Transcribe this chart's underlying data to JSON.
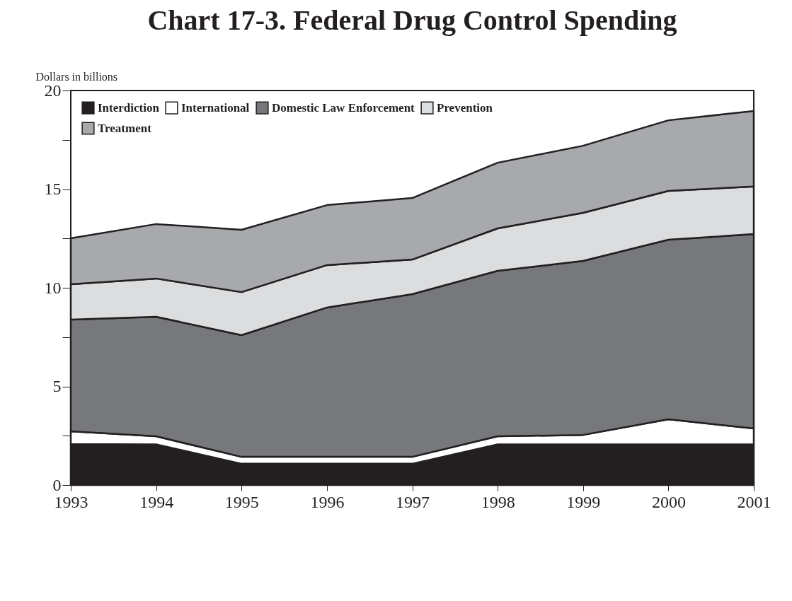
{
  "chart_data": {
    "type": "area",
    "title": "Chart 17-3.  Federal Drug Control Spending",
    "ylabel": "Dollars in billions",
    "stacked": true,
    "x": [
      1993,
      1994,
      1995,
      1996,
      1997,
      1998,
      1999,
      2000,
      2001
    ],
    "series": [
      {
        "name": "Interdiction",
        "color": "#231f20",
        "values": [
          2.08,
          2.06,
          1.08,
          1.08,
          1.08,
          2.06,
          2.06,
          2.06,
          2.06
        ]
      },
      {
        "name": "International",
        "color": "#ffffff",
        "values": [
          0.64,
          0.41,
          0.35,
          0.35,
          0.35,
          0.41,
          0.48,
          1.27,
          0.81
        ]
      },
      {
        "name": "Domestic Law Enforcement",
        "color": "#77787b",
        "values": [
          5.67,
          6.06,
          6.17,
          7.57,
          8.25,
          8.39,
          8.82,
          9.11,
          9.85
        ]
      },
      {
        "name": "Prevention",
        "color": "#dcdddf",
        "values": [
          1.79,
          1.94,
          2.18,
          2.15,
          1.75,
          2.15,
          2.44,
          2.47,
          2.41
        ]
      },
      {
        "name": "Treatment",
        "color": "#a7a9ac",
        "values": [
          2.33,
          2.76,
          3.16,
          3.04,
          3.12,
          3.33,
          3.4,
          3.58,
          3.83
        ]
      }
    ],
    "xlim": [
      1993,
      2001
    ],
    "xticks": [
      1993,
      1994,
      1995,
      1996,
      1997,
      1998,
      1999,
      2000,
      2001
    ],
    "ylim": [
      0,
      20
    ],
    "yticks": [
      0,
      {
        "value": 2.5,
        "label": null
      },
      5,
      {
        "value": 7.5,
        "label": null
      },
      10,
      {
        "value": 12.5,
        "label": null
      },
      15,
      {
        "value": 17.5,
        "label": null
      },
      20
    ],
    "grid": false,
    "legend": "top left"
  }
}
